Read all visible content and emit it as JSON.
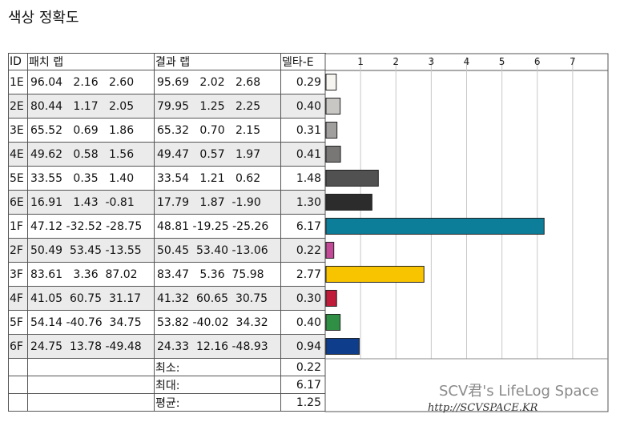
{
  "title": "색상 정확도",
  "headers": {
    "id": "ID",
    "patch": "패치 랩",
    "result": "결과 랩",
    "delta": "델타-E"
  },
  "rows": [
    {
      "id": "1E",
      "patch": "96.04   2.16   2.60",
      "result": "95.69   2.02   2.68",
      "delta": "0.29",
      "color": "#f7f5f0"
    },
    {
      "id": "2E",
      "patch": "80.44   1.17   2.05",
      "result": "79.95   1.25   2.25",
      "delta": "0.40",
      "color": "#c9c7c4"
    },
    {
      "id": "3E",
      "patch": "65.52   0.69   1.86",
      "result": "65.32   0.70   2.15",
      "delta": "0.31",
      "color": "#a19f9d"
    },
    {
      "id": "4E",
      "patch": "49.62   0.58   1.56",
      "result": "49.47   0.57   1.97",
      "delta": "0.41",
      "color": "#787776"
    },
    {
      "id": "5E",
      "patch": "33.55   0.35   1.40",
      "result": "33.54   1.21   0.62",
      "delta": "1.48",
      "color": "#525151"
    },
    {
      "id": "6E",
      "patch": "16.91   1.43  -0.81",
      "result": "17.79   1.87  -1.90",
      "delta": "1.30",
      "color": "#2d2c2c"
    },
    {
      "id": "1F",
      "patch": "47.12 -32.52 -28.75",
      "result": "48.81 -19.25 -25.26",
      "delta": "6.17",
      "color": "#0c7e9a"
    },
    {
      "id": "2F",
      "patch": "50.49  53.45 -13.55",
      "result": "50.45  53.40 -13.06",
      "delta": "0.22",
      "color": "#c24a97"
    },
    {
      "id": "3F",
      "patch": "83.61   3.36  87.02",
      "result": "83.47   5.36  75.98",
      "delta": "2.77",
      "color": "#f8c400"
    },
    {
      "id": "4F",
      "patch": "41.05  60.75  31.17",
      "result": "41.32  60.65  30.75",
      "delta": "0.30",
      "color": "#c01b38"
    },
    {
      "id": "5F",
      "patch": "54.14 -40.76  34.75",
      "result": "53.82 -40.02  34.32",
      "delta": "0.40",
      "color": "#2f8f44"
    },
    {
      "id": "6F",
      "patch": "24.75  13.78 -49.48",
      "result": "24.33  12.16 -48.93",
      "delta": "0.94",
      "color": "#0e3d8c"
    }
  ],
  "summary": [
    {
      "label": "최소:",
      "value": "0.22"
    },
    {
      "label": "최대:",
      "value": "6.17"
    },
    {
      "label": "평균:",
      "value": "1.25"
    }
  ],
  "chart_data": {
    "type": "bar",
    "orientation": "horizontal",
    "categories": [
      "1E",
      "2E",
      "3E",
      "4E",
      "5E",
      "6E",
      "1F",
      "2F",
      "3F",
      "4F",
      "5F",
      "6F"
    ],
    "values": [
      0.29,
      0.4,
      0.31,
      0.41,
      1.48,
      1.3,
      6.17,
      0.22,
      2.77,
      0.3,
      0.4,
      0.94
    ],
    "xlim": [
      0,
      8
    ],
    "xticks": [
      "1",
      "2",
      "3",
      "4",
      "5",
      "6",
      "7"
    ],
    "grid": true
  },
  "watermark": {
    "line1": "SCV君's LifeLog Space",
    "line2": "http://SCVSPACE.KR"
  }
}
